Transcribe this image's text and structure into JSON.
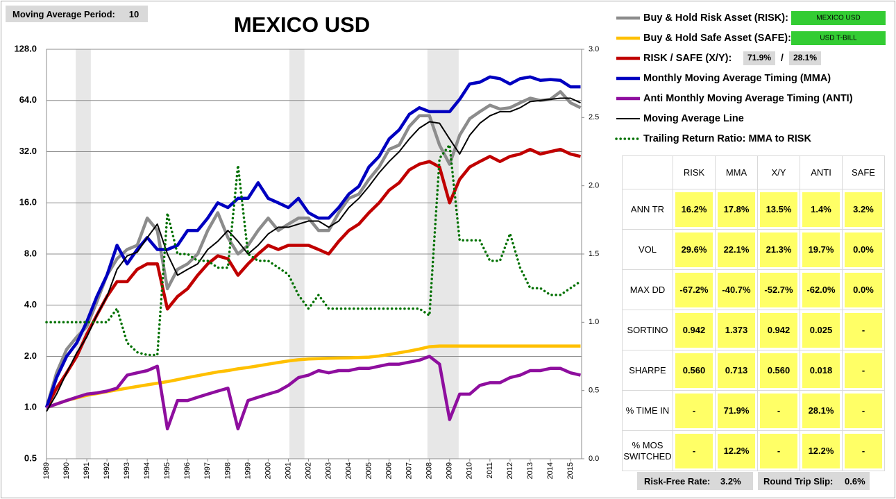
{
  "header": {
    "ma_period_label": "Moving Average Period:",
    "ma_period": 10
  },
  "chart_data": {
    "type": "line",
    "title": "MEXICO USD",
    "log_y": true,
    "grid": true,
    "x": [
      1989,
      1989.5,
      1990,
      1990.5,
      1991,
      1991.5,
      1992,
      1992.5,
      1993,
      1993.5,
      1994,
      1994.5,
      1995,
      1995.5,
      1996,
      1996.5,
      1997,
      1997.5,
      1998,
      1998.5,
      1999,
      1999.5,
      2000,
      2000.5,
      2001,
      2001.5,
      2002,
      2002.5,
      2003,
      2003.5,
      2004,
      2004.5,
      2005,
      2005.5,
      2006,
      2006.5,
      2007,
      2007.5,
      2008,
      2008.5,
      2009,
      2009.5,
      2010,
      2010.5,
      2011,
      2011.5,
      2012,
      2012.5,
      2013,
      2013.5,
      2014,
      2014.5,
      2015,
      2015.5
    ],
    "xlim": [
      1989,
      2015.55
    ],
    "xticks": [
      1989,
      1990,
      1991,
      1992,
      1993,
      1994,
      1995,
      1996,
      1997,
      1998,
      1999,
      2000,
      2001,
      2002,
      2003,
      2004,
      2005,
      2006,
      2007,
      2008,
      2009,
      2010,
      2011,
      2012,
      2013,
      2014,
      2015
    ],
    "ylim": [
      0.5,
      128
    ],
    "yticks": [
      {
        "value": 128,
        "label": "128.0"
      },
      {
        "value": 64,
        "label": "64.0"
      },
      {
        "value": 32,
        "label": "32.0"
      },
      {
        "value": 16,
        "label": "16.0"
      },
      {
        "value": 8,
        "label": "8.0"
      },
      {
        "value": 4,
        "label": "4.0"
      },
      {
        "value": 2,
        "label": "2.0"
      },
      {
        "value": 1,
        "label": "1.0"
      },
      {
        "value": 0.5,
        "label": "0.5"
      }
    ],
    "y2lim": [
      0,
      3
    ],
    "y2ticks": [
      {
        "value": 3,
        "label": "3.0"
      },
      {
        "value": 2.5,
        "label": "2.5"
      },
      {
        "value": 2,
        "label": "2.0"
      },
      {
        "value": 1.5,
        "label": "1.5"
      },
      {
        "value": 1,
        "label": "1.0"
      },
      {
        "value": 0.5,
        "label": "0.5"
      },
      {
        "value": 0,
        "label": "0.0"
      }
    ],
    "shaded_periods": [
      [
        1990.45,
        1991.2
      ],
      [
        2001.05,
        2001.8
      ],
      [
        2007.9,
        2009.45
      ]
    ],
    "shade_color": "#e7e7e7",
    "risk_asset": "MEXICO USD",
    "safe_asset": "USD T-BILL",
    "badge_color": "#33cc33",
    "allocation": [
      "71.9%",
      "28.1%"
    ],
    "allocation_separator": "/",
    "series": [
      {
        "name": "Buy & Hold Risk Asset (RISK):",
        "color": "#8c8c8c",
        "line_style": "thick",
        "values": [
          1.0,
          1.6,
          2.2,
          2.6,
          3.0,
          4.2,
          6.0,
          7.5,
          8.5,
          9,
          13,
          11,
          5,
          6.5,
          7,
          8,
          11,
          14,
          10,
          8,
          9,
          11,
          13,
          11,
          12,
          13,
          13,
          11,
          11,
          14,
          17,
          18,
          22,
          26,
          33,
          35,
          45,
          52,
          52,
          35,
          27,
          40,
          50,
          55,
          60,
          57,
          58,
          62,
          66,
          64,
          65,
          72,
          62,
          58
        ]
      },
      {
        "name": "Buy & Hold Safe Asset (SAFE):",
        "color": "#ffc000",
        "line_style": "thick",
        "values": [
          1.0,
          1.05,
          1.1,
          1.14,
          1.18,
          1.21,
          1.24,
          1.27,
          1.3,
          1.33,
          1.36,
          1.39,
          1.42,
          1.46,
          1.5,
          1.54,
          1.58,
          1.62,
          1.65,
          1.69,
          1.72,
          1.76,
          1.8,
          1.84,
          1.88,
          1.91,
          1.93,
          1.94,
          1.95,
          1.955,
          1.96,
          1.97,
          1.98,
          2.01,
          2.05,
          2.1,
          2.15,
          2.21,
          2.28,
          2.3,
          2.3,
          2.3,
          2.3,
          2.3,
          2.3,
          2.3,
          2.3,
          2.3,
          2.3,
          2.3,
          2.3,
          2.3,
          2.3,
          2.3
        ]
      },
      {
        "name": "RISK / SAFE (X/Y):",
        "color": "#c00000",
        "line_style": "thick",
        "values": [
          1.0,
          1.3,
          1.6,
          2.0,
          2.7,
          3.5,
          4.5,
          5.5,
          5.5,
          6.5,
          7,
          7,
          3.8,
          4.5,
          5,
          6,
          7,
          7.8,
          7.5,
          6,
          7,
          8,
          9,
          8.5,
          9,
          9,
          9,
          8.5,
          8,
          9.5,
          11,
          12,
          14,
          16,
          19,
          21,
          25,
          27,
          28,
          26,
          16,
          22,
          26,
          28,
          30,
          28,
          30,
          31,
          33,
          31,
          32,
          33,
          31,
          30
        ]
      },
      {
        "name": "Monthly Moving Average Timing (MMA)",
        "color": "#0000c0",
        "line_style": "thick",
        "values": [
          1.0,
          1.5,
          2.0,
          2.4,
          3.2,
          4.5,
          6,
          9,
          7,
          8.5,
          10,
          8.5,
          8.5,
          9,
          11,
          11,
          13,
          16,
          15,
          17,
          17,
          21,
          17,
          16,
          15,
          17,
          14,
          13,
          13,
          15,
          18,
          20,
          26,
          30,
          38,
          43,
          53,
          58,
          55,
          55,
          55,
          65,
          80,
          82,
          88,
          86,
          80,
          86,
          88,
          84,
          85,
          84,
          77,
          77
        ]
      },
      {
        "name": "Anti Monthly Moving Average Timing (ANTI)",
        "color": "#8e0e9e",
        "line_style": "thick",
        "values": [
          1.0,
          1.05,
          1.1,
          1.15,
          1.2,
          1.22,
          1.25,
          1.3,
          1.55,
          1.6,
          1.65,
          1.75,
          0.75,
          1.1,
          1.1,
          1.15,
          1.2,
          1.25,
          1.3,
          0.75,
          1.1,
          1.15,
          1.2,
          1.25,
          1.35,
          1.5,
          1.55,
          1.65,
          1.6,
          1.65,
          1.65,
          1.7,
          1.7,
          1.75,
          1.8,
          1.8,
          1.85,
          1.9,
          2.0,
          1.8,
          0.85,
          1.2,
          1.2,
          1.35,
          1.4,
          1.4,
          1.5,
          1.55,
          1.65,
          1.65,
          1.7,
          1.7,
          1.6,
          1.55
        ]
      },
      {
        "name": "Moving Average Line",
        "color": "#000000",
        "line_style": "thin",
        "values": [
          0.95,
          1.2,
          1.6,
          2.1,
          2.6,
          3.5,
          4.5,
          6.5,
          7.8,
          8.2,
          10,
          12,
          8,
          6,
          6.5,
          7,
          8.5,
          9.5,
          11,
          9.5,
          8,
          9,
          10.5,
          11.5,
          11.5,
          12,
          12.5,
          12.5,
          11.5,
          12.5,
          15,
          17,
          20,
          24,
          28,
          32,
          38,
          44,
          48,
          47,
          38,
          31,
          40,
          47,
          52,
          55,
          55,
          58,
          63,
          64,
          65,
          66,
          66,
          62
        ]
      },
      {
        "name": "Trailing Return Ratio: MMA to RISK",
        "color": "#007000",
        "line_style": "dotted",
        "axis": "y2",
        "values": [
          1.0,
          1.0,
          1.0,
          1.0,
          1.0,
          1.0,
          1.0,
          1.1,
          0.85,
          0.78,
          0.76,
          0.76,
          1.8,
          1.5,
          1.5,
          1.45,
          1.45,
          1.4,
          1.4,
          2.15,
          1.5,
          1.45,
          1.45,
          1.4,
          1.35,
          1.2,
          1.1,
          1.2,
          1.1,
          1.1,
          1.1,
          1.1,
          1.1,
          1.1,
          1.1,
          1.1,
          1.1,
          1.1,
          1.05,
          2.2,
          2.3,
          1.6,
          1.6,
          1.6,
          1.45,
          1.45,
          1.65,
          1.4,
          1.25,
          1.25,
          1.2,
          1.2,
          1.25,
          1.3
        ]
      }
    ]
  },
  "table": {
    "columns": [
      "RISK",
      "MMA",
      "X/Y",
      "ANTI",
      "SAFE"
    ],
    "rows": [
      {
        "label": "ANN TR",
        "cells": [
          "16.2%",
          "17.8%",
          "13.5%",
          "1.4%",
          "3.2%"
        ]
      },
      {
        "label": "VOL",
        "cells": [
          "29.6%",
          "22.1%",
          "21.3%",
          "19.7%",
          "0.0%"
        ]
      },
      {
        "label": "MAX DD",
        "cells": [
          "-67.2%",
          "-40.7%",
          "-52.7%",
          "-62.0%",
          "0.0%"
        ]
      },
      {
        "label": "SORTINO",
        "cells": [
          "0.942",
          "1.373",
          "0.942",
          "0.025",
          "-"
        ]
      },
      {
        "label": "SHARPE",
        "cells": [
          "0.560",
          "0.713",
          "0.560",
          "0.018",
          "-"
        ]
      },
      {
        "label": "% TIME IN",
        "cells": [
          "-",
          "71.9%",
          "-",
          "28.1%",
          "-"
        ]
      },
      {
        "label": "% MOS SWITCHED",
        "cells": [
          "-",
          "12.2%",
          "-",
          "12.2%",
          "-"
        ]
      }
    ]
  },
  "footer": {
    "risk_free_label": "Risk-Free Rate:",
    "risk_free": "3.2%",
    "slip_label": "Round Trip Slip:",
    "slip": "0.6%"
  }
}
